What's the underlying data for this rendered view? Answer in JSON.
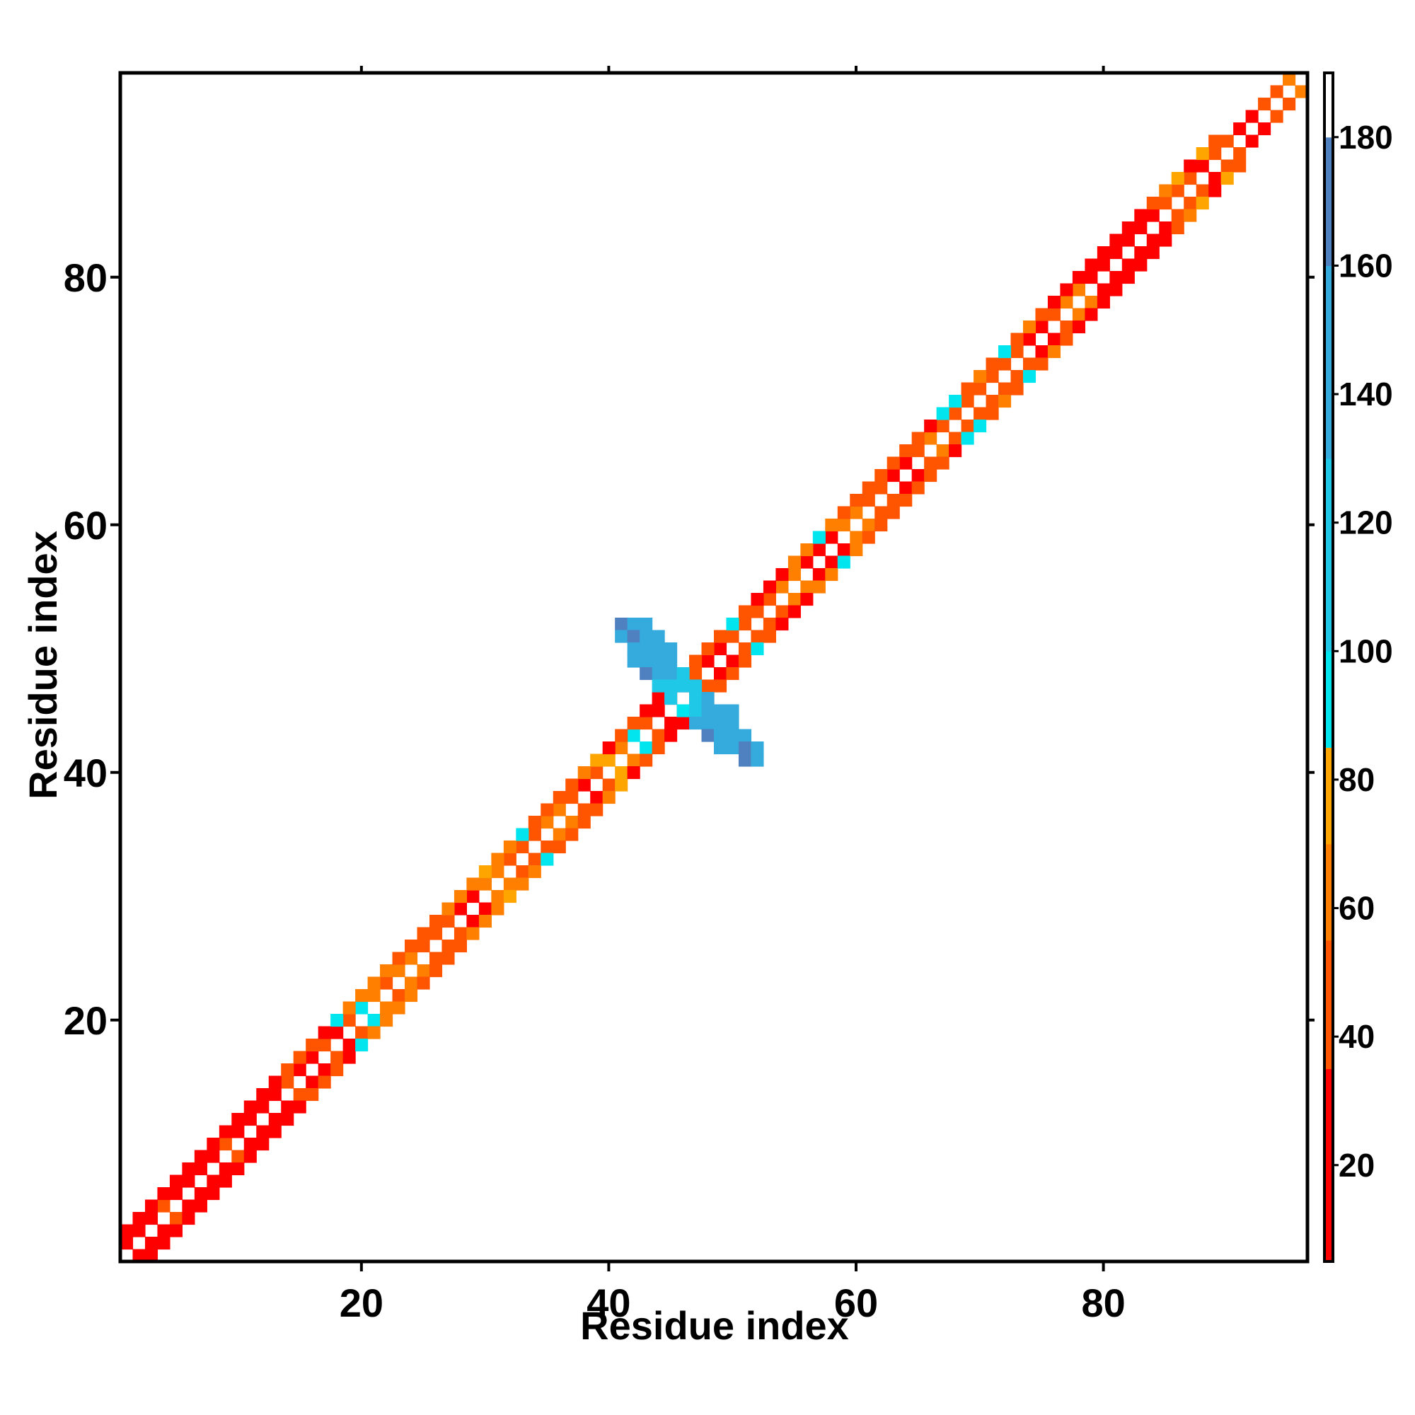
{
  "chart_data": {
    "type": "heatmap",
    "title": "",
    "xlabel": "Residue index",
    "ylabel": "Residue index",
    "xlim": [
      1,
      96
    ],
    "ylim": [
      1,
      96
    ],
    "x_ticks": [
      20,
      40,
      60,
      80
    ],
    "y_ticks": [
      20,
      40,
      60,
      80
    ],
    "grid": false,
    "colorbar": {
      "min": 5,
      "max": 190,
      "ticks": [
        20,
        40,
        60,
        80,
        100,
        120,
        140,
        160,
        180
      ],
      "segments": [
        {
          "from": 5,
          "to": 35,
          "color": "#ff0000"
        },
        {
          "from": 35,
          "to": 55,
          "color": "#ff5500"
        },
        {
          "from": 55,
          "to": 70,
          "color": "#ff7f00"
        },
        {
          "from": 70,
          "to": 85,
          "color": "#ffa500"
        },
        {
          "from": 85,
          "to": 100,
          "color": "#00e5ee"
        },
        {
          "from": 100,
          "to": 130,
          "color": "#1ec8e6"
        },
        {
          "from": 130,
          "to": 160,
          "color": "#35aadc"
        },
        {
          "from": 160,
          "to": 180,
          "color": "#4f80bf"
        },
        {
          "from": 180,
          "to": 190,
          "color": "#ffffff"
        }
      ]
    },
    "diagonal_bands": {
      "offset_1": [
        30,
        30,
        30,
        50,
        30,
        30,
        30,
        30,
        50,
        30,
        30,
        30,
        30,
        50,
        30,
        30,
        50,
        30,
        40,
        95,
        60,
        50,
        60,
        60,
        50,
        50,
        50,
        30,
        30,
        60,
        60,
        40,
        40,
        50,
        60,
        60,
        50,
        30,
        40,
        70,
        60,
        95,
        40,
        30,
        30,
        30,
        40,
        30,
        30,
        40,
        40,
        50,
        50,
        60,
        60,
        30,
        30,
        30,
        60,
        60,
        40,
        40,
        30,
        30,
        50,
        60,
        40,
        50,
        50,
        40,
        50,
        40,
        50,
        30,
        30,
        40,
        60,
        60,
        30,
        30,
        30,
        30,
        30,
        30,
        50,
        40,
        40,
        30,
        50,
        50,
        30,
        30,
        40,
        50,
        60
      ],
      "offset_2": [
        30,
        30,
        30,
        30,
        30,
        30,
        30,
        30,
        30,
        30,
        30,
        30,
        30,
        50,
        40,
        40,
        30,
        95,
        60,
        60,
        60,
        60,
        50,
        50,
        40,
        40,
        60,
        60,
        60,
        70,
        60,
        60,
        95,
        50,
        40,
        40,
        40,
        60,
        70,
        30,
        50,
        40,
        30,
        30,
        30,
        40,
        40,
        40,
        40,
        95,
        50,
        30,
        30,
        30,
        60,
        60,
        95,
        60,
        50,
        50,
        40,
        40,
        40,
        50,
        50,
        30,
        95,
        95,
        50,
        60,
        40,
        95,
        50,
        60,
        50,
        30,
        30,
        30,
        30,
        30,
        30,
        30,
        30,
        50,
        60,
        70,
        30,
        70,
        40
      ]
    },
    "turn_region": [
      {
        "x": 41,
        "y": 52,
        "v": 165
      },
      {
        "x": 42,
        "y": 52,
        "v": 145
      },
      {
        "x": 43,
        "y": 52,
        "v": 145
      },
      {
        "x": 41,
        "y": 51,
        "v": 145
      },
      {
        "x": 42,
        "y": 51,
        "v": 165
      },
      {
        "x": 43,
        "y": 51,
        "v": 145
      },
      {
        "x": 44,
        "y": 51,
        "v": 145
      },
      {
        "x": 42,
        "y": 50,
        "v": 145
      },
      {
        "x": 43,
        "y": 50,
        "v": 145
      },
      {
        "x": 44,
        "y": 50,
        "v": 145
      },
      {
        "x": 45,
        "y": 50,
        "v": 145
      },
      {
        "x": 42,
        "y": 49,
        "v": 145
      },
      {
        "x": 43,
        "y": 49,
        "v": 145
      },
      {
        "x": 44,
        "y": 49,
        "v": 145
      },
      {
        "x": 45,
        "y": 49,
        "v": 145
      },
      {
        "x": 43,
        "y": 48,
        "v": 165
      },
      {
        "x": 44,
        "y": 48,
        "v": 145
      },
      {
        "x": 45,
        "y": 48,
        "v": 145
      },
      {
        "x": 46,
        "y": 48,
        "v": 120
      },
      {
        "x": 44,
        "y": 47,
        "v": 120
      },
      {
        "x": 45,
        "y": 47,
        "v": 120
      },
      {
        "x": 46,
        "y": 47,
        "v": 120
      },
      {
        "x": 47,
        "y": 47,
        "v": 120
      },
      {
        "x": 45,
        "y": 46,
        "v": 120
      },
      {
        "x": 47,
        "y": 46,
        "v": 120
      },
      {
        "x": 48,
        "y": 46,
        "v": 145
      },
      {
        "x": 46,
        "y": 45,
        "v": 95
      },
      {
        "x": 47,
        "y": 45,
        "v": 120
      },
      {
        "x": 48,
        "y": 45,
        "v": 145
      },
      {
        "x": 49,
        "y": 45,
        "v": 145
      },
      {
        "x": 50,
        "y": 45,
        "v": 145
      },
      {
        "x": 47,
        "y": 44,
        "v": 145
      },
      {
        "x": 48,
        "y": 44,
        "v": 145
      },
      {
        "x": 49,
        "y": 44,
        "v": 145
      },
      {
        "x": 50,
        "y": 44,
        "v": 145
      },
      {
        "x": 48,
        "y": 43,
        "v": 165
      },
      {
        "x": 49,
        "y": 43,
        "v": 145
      },
      {
        "x": 50,
        "y": 43,
        "v": 145
      },
      {
        "x": 51,
        "y": 43,
        "v": 145
      },
      {
        "x": 49,
        "y": 42,
        "v": 145
      },
      {
        "x": 50,
        "y": 42,
        "v": 145
      },
      {
        "x": 51,
        "y": 42,
        "v": 165
      },
      {
        "x": 52,
        "y": 42,
        "v": 145
      },
      {
        "x": 51,
        "y": 41,
        "v": 165
      },
      {
        "x": 52,
        "y": 41,
        "v": 145
      }
    ]
  }
}
